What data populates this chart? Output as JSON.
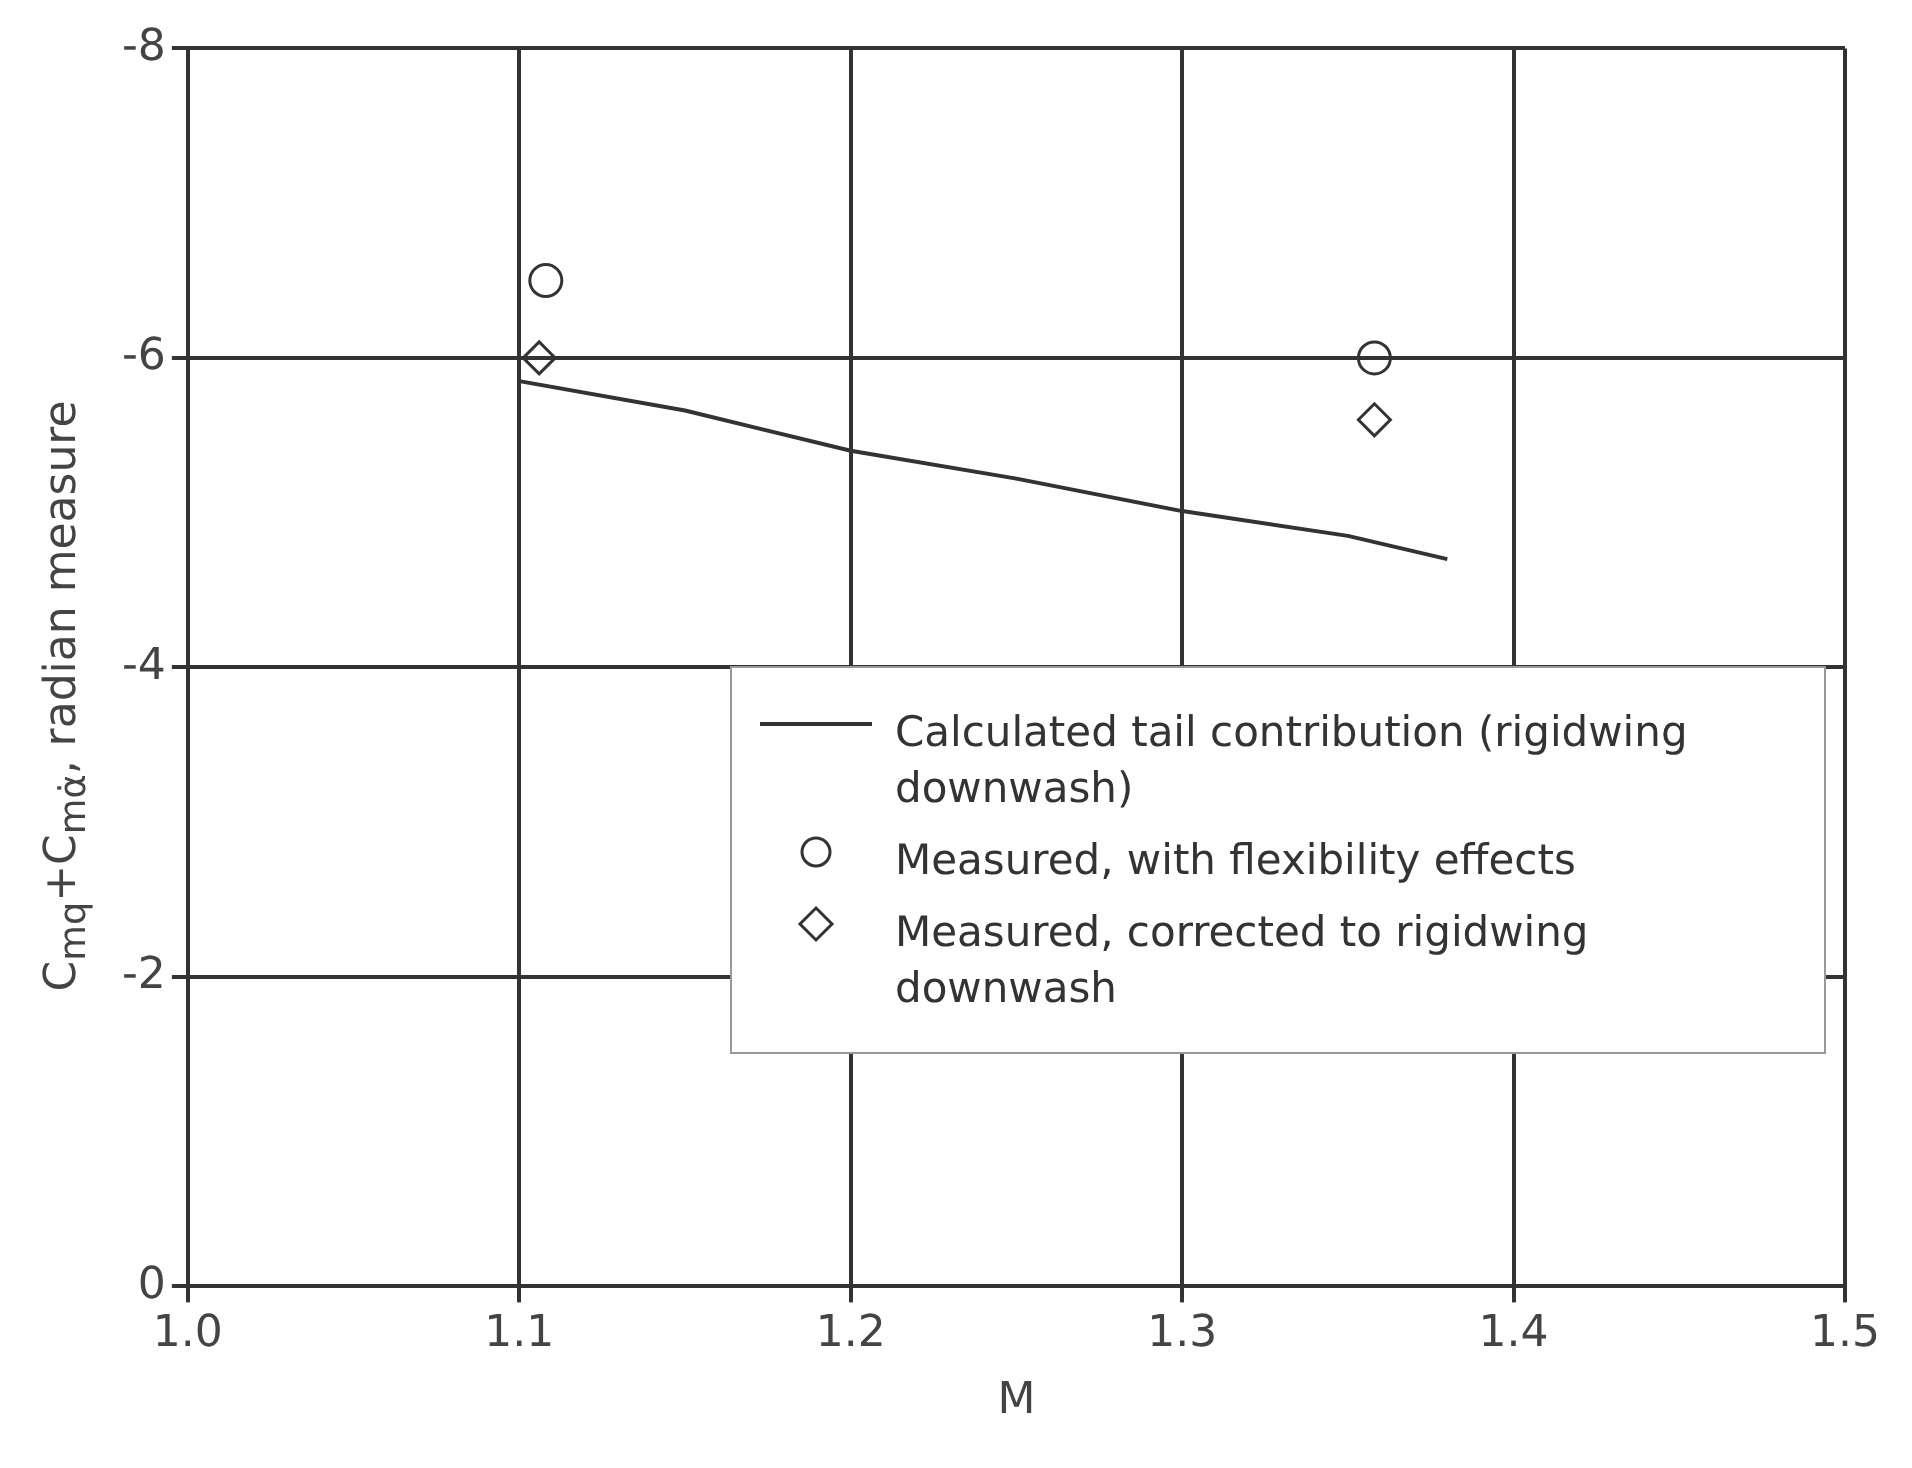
{
  "chart_data": {
    "type": "scatter",
    "xlabel": "M",
    "ylabel": "C$_{mq}$+C$_{mα̇}$, radian measure",
    "xlim": [
      1.0,
      1.5
    ],
    "xticks": [
      {
        "value": 1.0,
        "label": "1.0"
      },
      1.1,
      1.2,
      1.3,
      1.4,
      1.5
    ],
    "ylim": [
      0,
      -8
    ],
    "yticks": [
      0,
      -2,
      -4,
      -6,
      -8
    ],
    "grid": true,
    "legend": "bottom right",
    "series": [
      {
        "name": "Calculated tail contribution (rigidwing downwash)",
        "type": "line",
        "marker": "none",
        "color": "#333333",
        "x": [
          1.1,
          1.15,
          1.2,
          1.25,
          1.3,
          1.35,
          1.38
        ],
        "values": [
          -5.85,
          -5.66,
          -5.4,
          -5.22,
          -5.01,
          -4.85,
          -4.7
        ]
      },
      {
        "name": "Measured, with flexibility effects",
        "type": "scatter",
        "marker": "circle",
        "color": "#333333",
        "x": [
          1.108,
          1.358
        ],
        "values": [
          -6.5,
          -6.0
        ]
      },
      {
        "name": "Measured, corrected to rigidwing downwash",
        "type": "scatter",
        "marker": "diamond",
        "color": "#333333",
        "x": [
          1.106,
          1.358
        ],
        "values": [
          -6.0,
          -5.6
        ]
      }
    ]
  }
}
